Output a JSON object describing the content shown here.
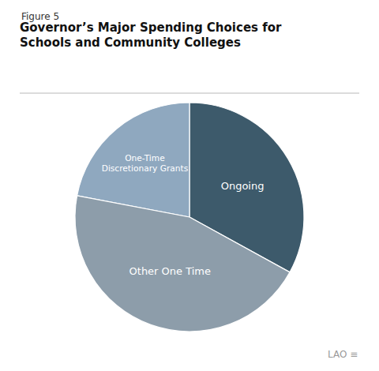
{
  "chart_data": {
    "type": "pie",
    "subtitle": "Figure 5",
    "title": "Governor’s Major Spending Choices for\nSchools and Community Colleges",
    "categories": [
      "Ongoing",
      "One-Time\nDiscretionary Grants",
      "Other One Time"
    ],
    "values": [
      33,
      22,
      45
    ],
    "colors": [
      "#3d5a6b",
      "#8fa8bf",
      "#8d9daa"
    ],
    "annotations": [
      "LAO",
      "≡"
    ],
    "legend": false
  }
}
